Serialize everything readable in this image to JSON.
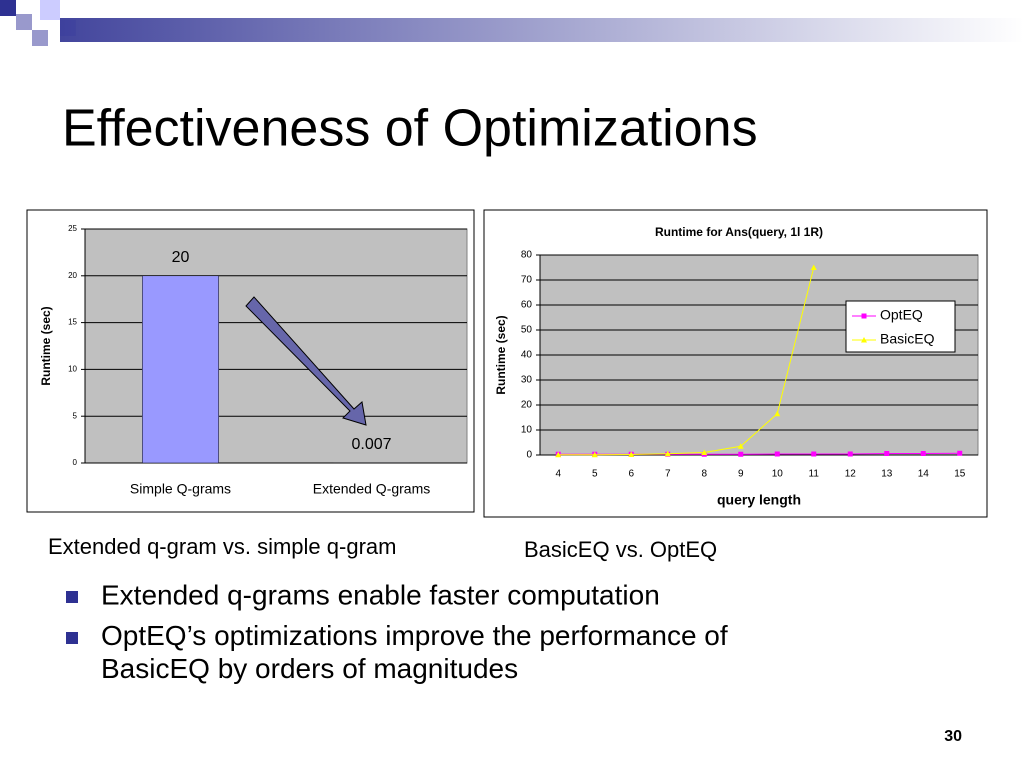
{
  "title": "Effectiveness of Optimizations",
  "chart_data": [
    {
      "type": "bar",
      "ylabel": "Runtime (sec)",
      "categories": [
        "Simple Q-grams",
        "Extended Q-grams"
      ],
      "values": [
        20,
        0.007
      ],
      "color": "#9999ff",
      "ylim": [
        0,
        25
      ],
      "yticks": [
        0,
        5,
        10,
        15,
        20,
        25
      ],
      "grid": true
    },
    {
      "type": "line",
      "title": "Runtime for Ans(query, 1l 1R)",
      "ylabel": "Runtime (sec)",
      "xlabel": "query length",
      "categories": [
        4,
        5,
        6,
        7,
        8,
        9,
        10,
        11,
        12,
        13,
        14,
        15
      ],
      "series": [
        {
          "name": "OptEQ",
          "color": "#ff00ff",
          "values": [
            0.3,
            0.3,
            0.3,
            0.3,
            0.3,
            0.3,
            0.4,
            0.4,
            0.4,
            0.6,
            0.6,
            0.7
          ]
        },
        {
          "name": "BasicEQ",
          "color": "#ffff00",
          "values": [
            0.1,
            0.1,
            0.2,
            0.5,
            1,
            3.5,
            16.5,
            75,
            null,
            null,
            null,
            null
          ]
        }
      ],
      "ylim": [
        0,
        80
      ],
      "yticks": [
        0,
        10,
        20,
        30,
        40,
        50,
        60,
        70,
        80
      ],
      "grid": true,
      "legend": "right"
    }
  ],
  "captions": [
    "Extended q-gram vs. simple q-gram",
    "BasicEQ vs. OptEQ"
  ],
  "bullets": [
    "Extended q-grams enable faster computation",
    "OptEQ’s optimizations improve the performance of BasicEQ by orders of magnitudes"
  ],
  "page_number": "30"
}
